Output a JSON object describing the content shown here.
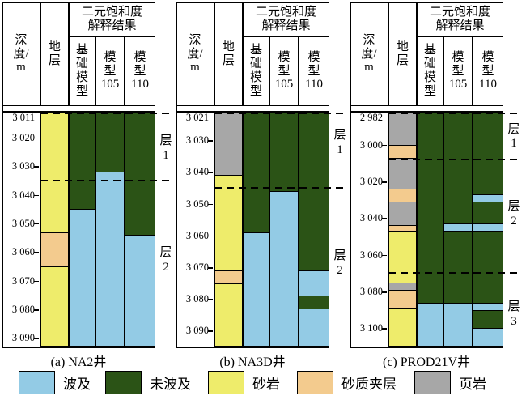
{
  "header": {
    "depth": [
      "深",
      "度/",
      "m"
    ],
    "formation": [
      "地",
      "层"
    ],
    "group": [
      "二元饱和度",
      "解释结果"
    ],
    "models": [
      [
        "基",
        "础",
        "模",
        "型"
      ],
      [
        "模",
        "型",
        "105"
      ],
      [
        "模",
        "型",
        "110"
      ]
    ]
  },
  "legend": [
    {
      "key": "swept",
      "label": "波及",
      "color": "#93CBE5"
    },
    {
      "key": "unswept",
      "label": "未波及",
      "color": "#2B5316"
    },
    {
      "key": "sandstone",
      "label": "砂岩",
      "color": "#EEEC6B"
    },
    {
      "key": "sandy_interbed",
      "label": "砂质夹层",
      "color": "#F3CB8E"
    },
    {
      "key": "shale",
      "label": "页岩",
      "color": "#A7A7A7"
    }
  ],
  "chart_data": [
    {
      "type": "well-log-saturation-column",
      "well": "NA2井",
      "caption": "(a) NA2井",
      "depth_unit": "m",
      "depth_range": [
        3011,
        3093
      ],
      "ticks": [
        "3 011",
        "3 020",
        "3 030",
        "3 040",
        "3 050",
        "3 060",
        "3 070",
        "3 080",
        "3 090"
      ],
      "layer_boundaries": [
        3011,
        3035
      ],
      "layer_labels": [
        {
          "label": "层1",
          "depth": 3024
        },
        {
          "label": "层2",
          "depth": 3063
        }
      ],
      "lithology": [
        {
          "fill": "sandstone",
          "from": 3011,
          "to": 3053
        },
        {
          "fill": "sandy_interbed",
          "from": 3053,
          "to": 3065
        },
        {
          "fill": "sandstone",
          "from": 3065,
          "to": 3093
        }
      ],
      "columns": [
        {
          "name": "基础模型",
          "segments": [
            {
              "fill": "unswept",
              "from": 3011,
              "to": 3045
            },
            {
              "fill": "swept",
              "from": 3045,
              "to": 3093
            }
          ]
        },
        {
          "name": "模型105",
          "segments": [
            {
              "fill": "unswept",
              "from": 3011,
              "to": 3032
            },
            {
              "fill": "swept",
              "from": 3032,
              "to": 3093
            }
          ]
        },
        {
          "name": "模型110",
          "segments": [
            {
              "fill": "unswept",
              "from": 3011,
              "to": 3054
            },
            {
              "fill": "swept",
              "from": 3054,
              "to": 3093
            }
          ]
        }
      ]
    },
    {
      "type": "well-log-saturation-column",
      "well": "NA3D井",
      "caption": "(b) NA3D井",
      "depth_unit": "m",
      "depth_range": [
        3021,
        3095
      ],
      "ticks": [
        "3 021",
        "3 030",
        "3 040",
        "3 050",
        "3 060",
        "3 070",
        "3 080",
        "3 090"
      ],
      "layer_boundaries": [
        3021,
        3045
      ],
      "layer_labels": [
        {
          "label": "层1",
          "depth": 3031
        },
        {
          "label": "层2",
          "depth": 3069
        }
      ],
      "lithology": [
        {
          "fill": "shale",
          "from": 3021,
          "to": 3041
        },
        {
          "fill": "sandstone",
          "from": 3041,
          "to": 3071
        },
        {
          "fill": "sandy_interbed",
          "from": 3071,
          "to": 3075
        },
        {
          "fill": "sandstone",
          "from": 3075,
          "to": 3095
        }
      ],
      "columns": [
        {
          "name": "基础模型",
          "segments": [
            {
              "fill": "unswept",
              "from": 3021,
              "to": 3059
            },
            {
              "fill": "swept",
              "from": 3059,
              "to": 3095
            }
          ]
        },
        {
          "name": "模型105",
          "segments": [
            {
              "fill": "unswept",
              "from": 3021,
              "to": 3046
            },
            {
              "fill": "swept",
              "from": 3046,
              "to": 3095
            }
          ]
        },
        {
          "name": "模型110",
          "segments": [
            {
              "fill": "unswept",
              "from": 3021,
              "to": 3071
            },
            {
              "fill": "swept",
              "from": 3071,
              "to": 3079
            },
            {
              "fill": "unswept",
              "from": 3079,
              "to": 3083
            },
            {
              "fill": "swept",
              "from": 3083,
              "to": 3095
            }
          ]
        }
      ]
    },
    {
      "type": "well-log-saturation-column",
      "well": "PROD21V井",
      "caption": "(c) PROD21V井",
      "depth_unit": "m",
      "depth_range": [
        2982,
        3110
      ],
      "ticks": [
        "2 982",
        "3 000",
        "3 020",
        "3 040",
        "3 060",
        "3 080",
        "3 100"
      ],
      "layer_boundaries": [
        2982,
        3008,
        3070
      ],
      "layer_labels": [
        {
          "label": "层1",
          "depth": 2996
        },
        {
          "label": "层2",
          "depth": 3038
        },
        {
          "label": "层3",
          "depth": 3093
        }
      ],
      "lithology": [
        {
          "fill": "shale",
          "from": 2982,
          "to": 3000
        },
        {
          "fill": "sandy_interbed",
          "from": 3000,
          "to": 3007
        },
        {
          "fill": "shale",
          "from": 3007,
          "to": 3024
        },
        {
          "fill": "sandy_interbed",
          "from": 3024,
          "to": 3031
        },
        {
          "fill": "shale",
          "from": 3031,
          "to": 3044
        },
        {
          "fill": "sandy_interbed",
          "from": 3044,
          "to": 3047
        },
        {
          "fill": "sandstone",
          "from": 3047,
          "to": 3075
        },
        {
          "fill": "shale",
          "from": 3075,
          "to": 3079
        },
        {
          "fill": "sandy_interbed",
          "from": 3079,
          "to": 3089
        },
        {
          "fill": "sandstone",
          "from": 3089,
          "to": 3110
        }
      ],
      "columns": [
        {
          "name": "基础模型",
          "segments": [
            {
              "fill": "unswept",
              "from": 2982,
              "to": 3086
            },
            {
              "fill": "swept",
              "from": 3086,
              "to": 3110
            }
          ]
        },
        {
          "name": "模型105",
          "segments": [
            {
              "fill": "unswept",
              "from": 2982,
              "to": 3043
            },
            {
              "fill": "swept",
              "from": 3043,
              "to": 3047
            },
            {
              "fill": "unswept",
              "from": 3047,
              "to": 3086
            },
            {
              "fill": "swept",
              "from": 3086,
              "to": 3110
            }
          ]
        },
        {
          "name": "模型110",
          "segments": [
            {
              "fill": "unswept",
              "from": 2982,
              "to": 3027
            },
            {
              "fill": "swept",
              "from": 3027,
              "to": 3031
            },
            {
              "fill": "unswept",
              "from": 3031,
              "to": 3043
            },
            {
              "fill": "swept",
              "from": 3043,
              "to": 3047
            },
            {
              "fill": "unswept",
              "from": 3047,
              "to": 3086
            },
            {
              "fill": "swept",
              "from": 3086,
              "to": 3090
            },
            {
              "fill": "unswept",
              "from": 3090,
              "to": 3100
            },
            {
              "fill": "swept",
              "from": 3100,
              "to": 3110
            }
          ]
        }
      ]
    }
  ]
}
